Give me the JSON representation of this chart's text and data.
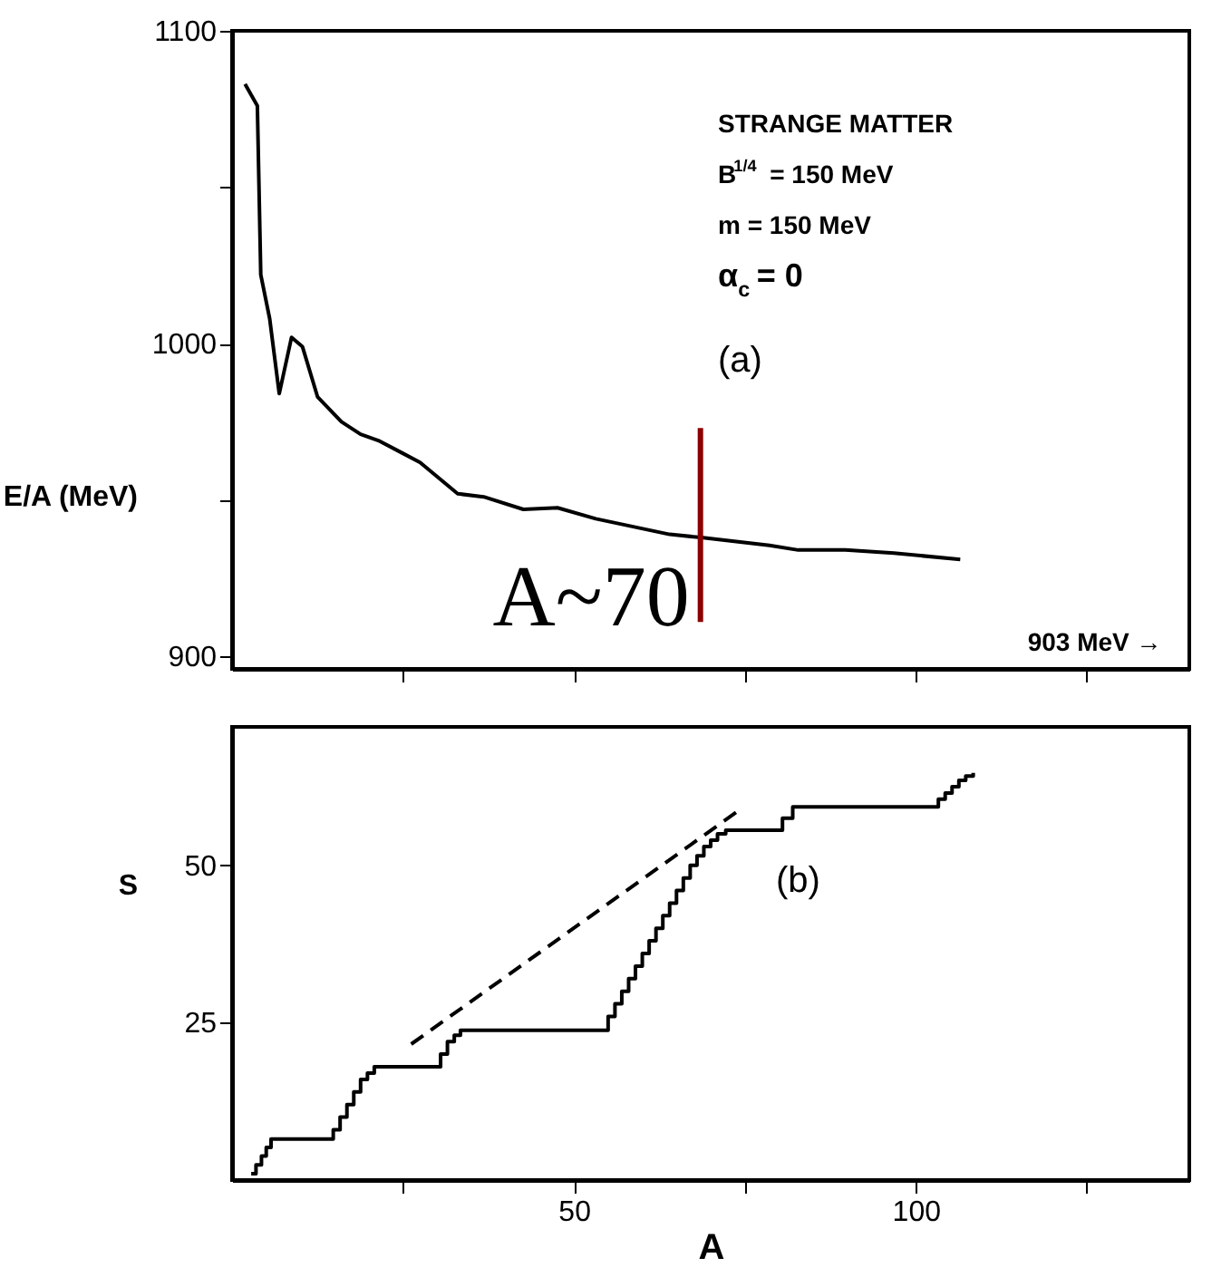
{
  "chart_data": [
    {
      "type": "line",
      "ylabel": "E/A (MeV)",
      "xlim": [
        0,
        140
      ],
      "ylim": [
        896,
        1100
      ],
      "xticks": [
        {
          "value": 25,
          "label": null
        },
        {
          "value": 50,
          "label": null
        },
        {
          "value": 75,
          "label": null
        },
        {
          "value": 100,
          "label": null
        },
        {
          "value": 125,
          "label": null
        }
      ],
      "yticks": [
        900,
        {
          "value": 950,
          "label": null
        },
        1000,
        {
          "value": 1050,
          "label": null
        },
        1100
      ],
      "tick_labels": "y",
      "grid": false,
      "series": [
        {
          "color": "#000000",
          "x": [
            1.9,
            3.7,
            4.2,
            5.5,
            6.9,
            8.7,
            10.3,
            12.5,
            16,
            18.8,
            21.4,
            24.9,
            27.5,
            33,
            36.8,
            42.6,
            47.6,
            53.2,
            64,
            68.6,
            78.6,
            82.8,
            89.7,
            96.8,
            106.5
          ],
          "values": [
            1083,
            1076,
            1022,
            1008,
            984,
            1002,
            999,
            983,
            975,
            971,
            969,
            965,
            962,
            952,
            951,
            947,
            947.5,
            944,
            939,
            938,
            935.5,
            934,
            934,
            933,
            931
          ]
        },
        {
          "color": "#8b0000",
          "x": [
            68.5,
            68.5
          ],
          "values": [
            973,
            911
          ]
        }
      ],
      "annotations": [
        "STRANGE MATTER",
        "B$^{1/4}$ = 150 MeV",
        "m = 150 MeV",
        "α$_{c}$ = 0",
        "(a)",
        {
          "text": "A~70",
          "x": 68.5,
          "y": 911
        },
        "903 MeV →"
      ]
    },
    {
      "type": "step",
      "xlabel": "A",
      "ylabel": "S",
      "xlim": [
        0,
        140
      ],
      "ylim": [
        0,
        72
      ],
      "xticks": [
        {
          "value": 25,
          "label": null
        },
        50,
        {
          "value": 75,
          "label": null
        },
        100,
        {
          "value": 125,
          "label": null
        }
      ],
      "yticks": [
        25,
        50
      ],
      "grid": false,
      "series": [
        {
          "color": "#000000",
          "x": [
            2.8,
            3.5,
            4.3,
            5.0,
            5.7,
            14.8,
            15.8,
            16.8,
            17.8,
            18.8,
            19.8,
            20.8,
            30.5,
            31.5,
            32.5,
            33.4,
            55.0,
            56.0,
            57.0,
            58.0,
            59.0,
            60.0,
            61.0,
            62.0,
            63.0,
            64.0,
            65.0,
            66.0,
            67.0,
            68.0,
            69.0,
            70.0,
            71.0,
            72.2,
            80.5,
            82.0,
            103.3,
            104.3,
            105.3,
            106.3,
            107.3,
            108.4
          ],
          "values": [
            1,
            2.4,
            3.8,
            5.2,
            6.5,
            8,
            10,
            12,
            14,
            16,
            17,
            18,
            20,
            22,
            23,
            23.8,
            26,
            28,
            30,
            32,
            34,
            36,
            38,
            40,
            42,
            44,
            46,
            48,
            50,
            51.5,
            53,
            54,
            55,
            55.6,
            57.5,
            59.3,
            60.5,
            61.5,
            62.5,
            63.5,
            64.2,
            64.7
          ]
        },
        {
          "type": "line",
          "line_style": "dashed",
          "color": "#000000",
          "x": [
            26.2,
            73.7
          ],
          "values": [
            21.6,
            58.4
          ]
        }
      ],
      "annotations": [
        "(b)"
      ]
    }
  ]
}
